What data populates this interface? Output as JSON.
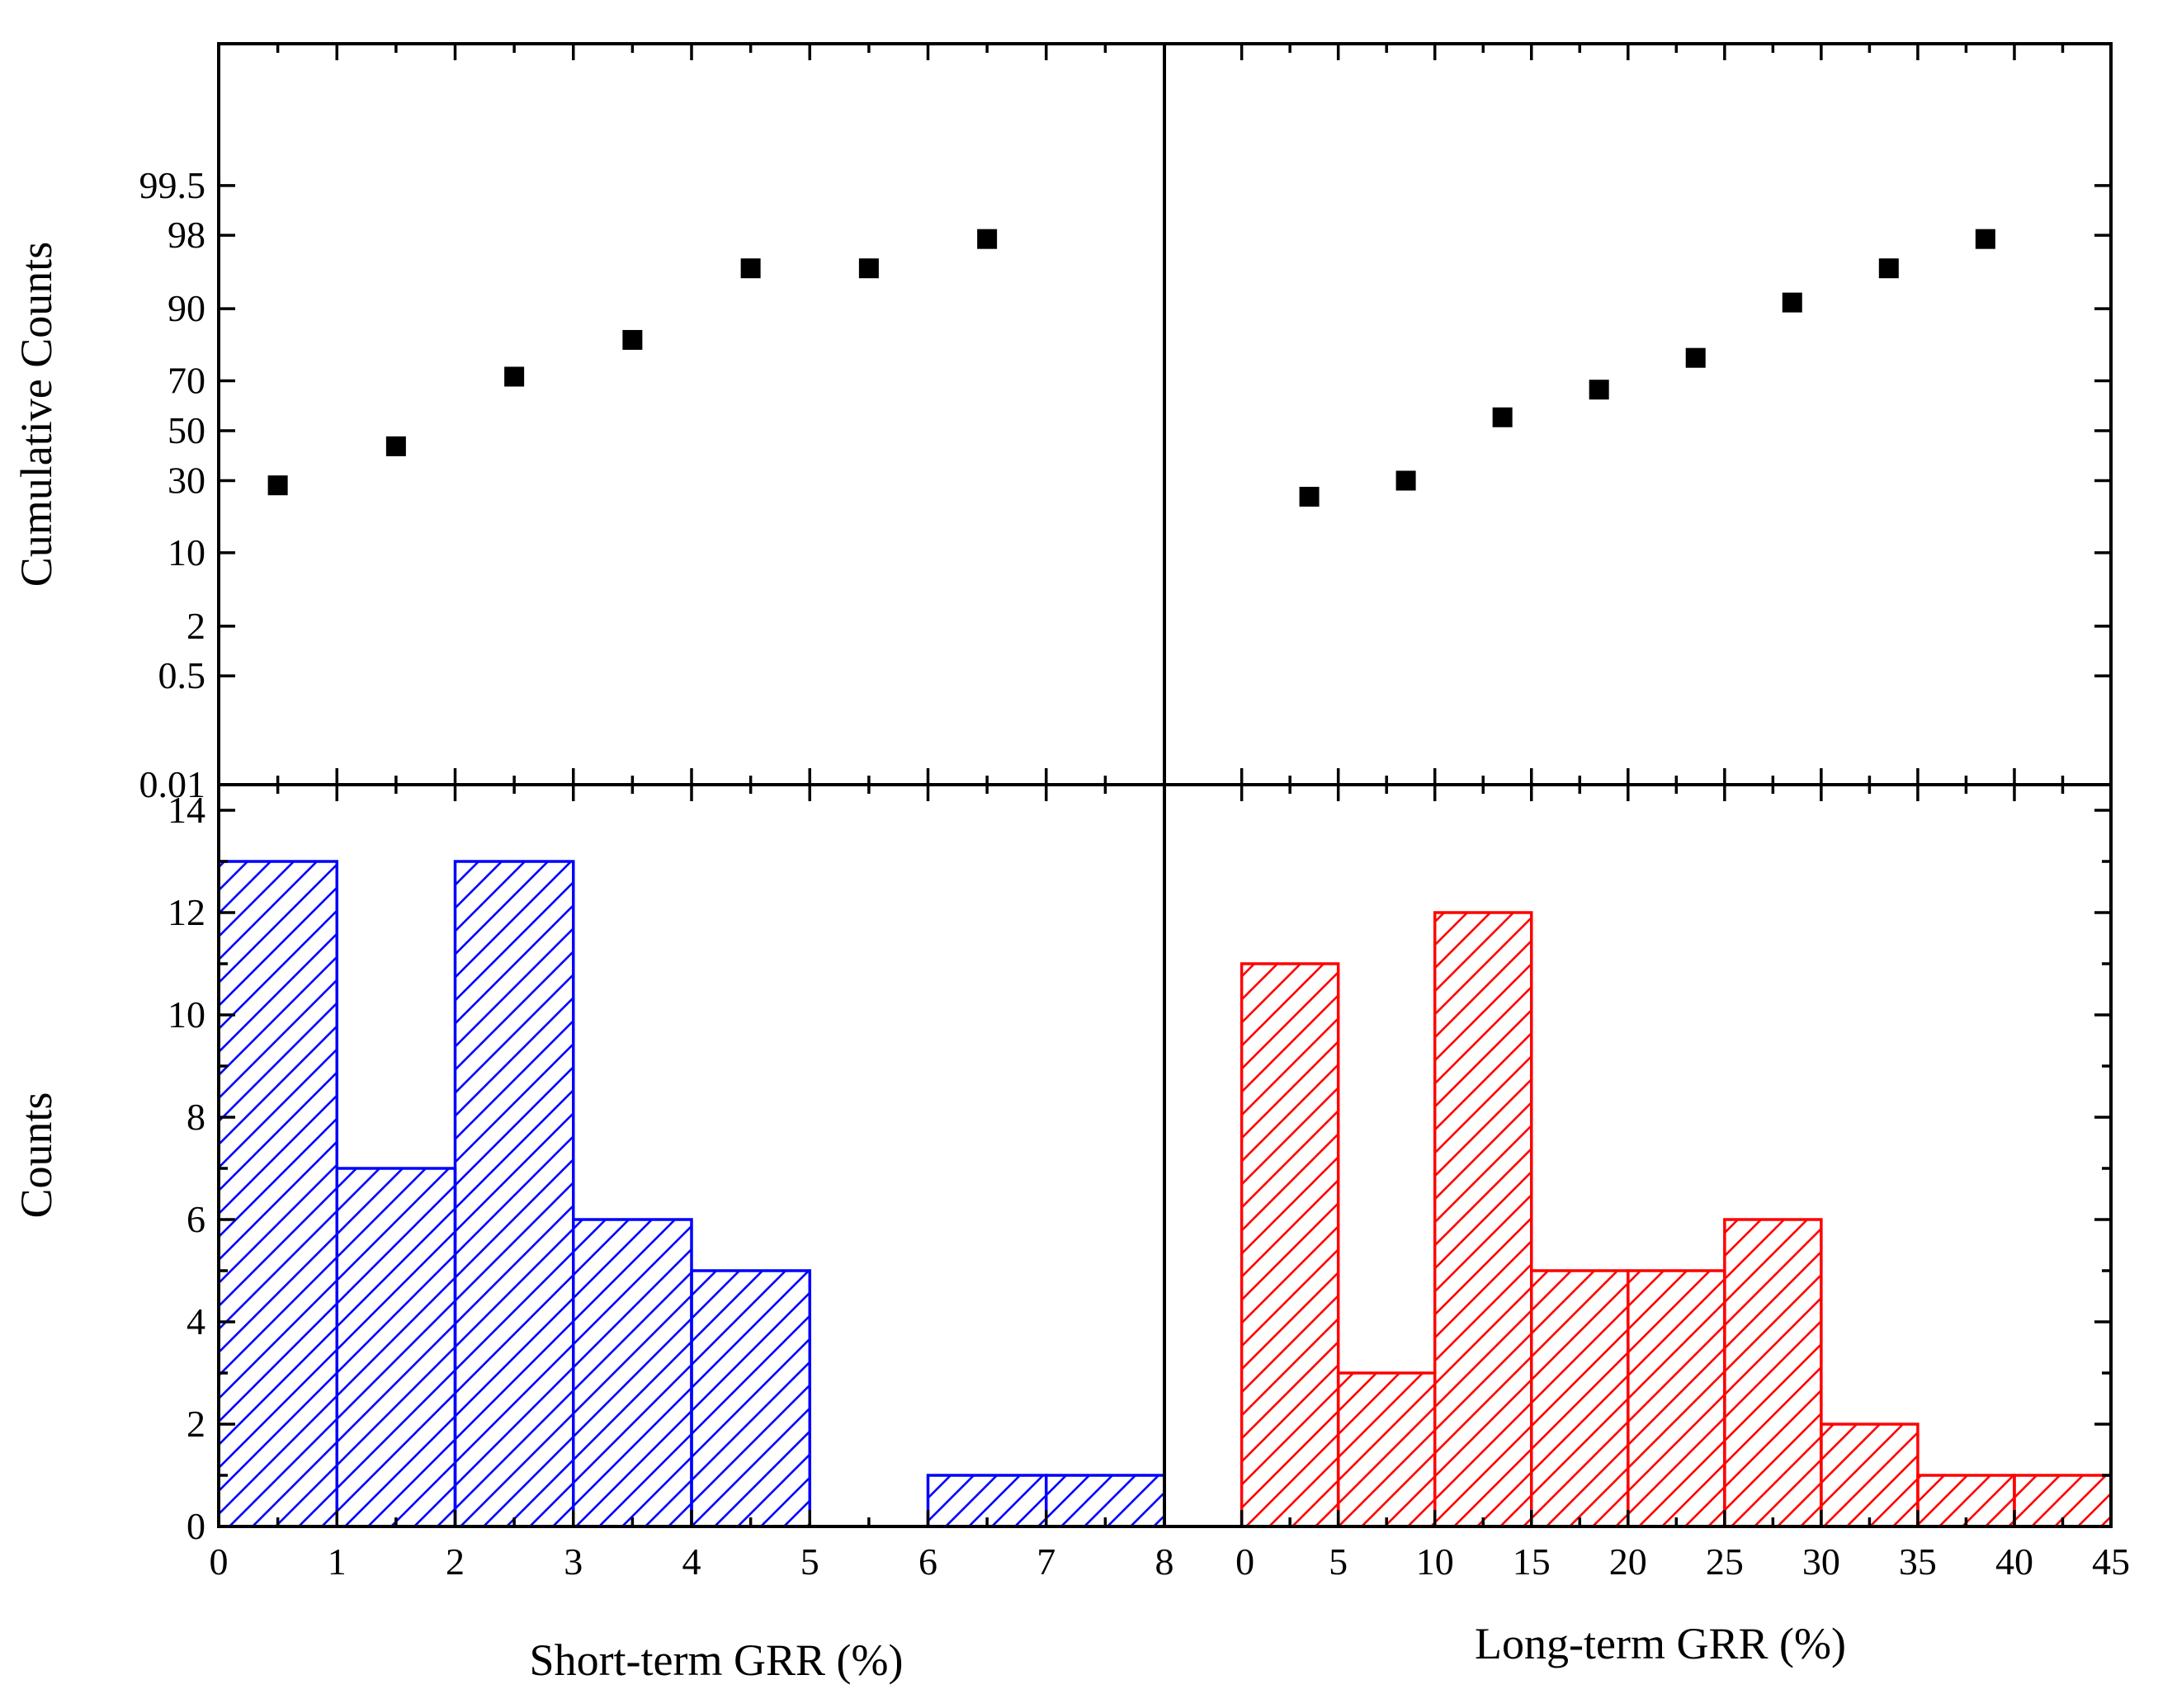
{
  "chart_data": [
    {
      "panel": "top-left",
      "type": "scatter",
      "ylabel": "Cumulative Counts",
      "yscale": "probability",
      "yticks": [
        "0.01",
        "0.5",
        "2",
        "10",
        "30",
        "50",
        "70",
        "90",
        "98",
        "99.5"
      ],
      "xlim": [
        0,
        8
      ],
      "series": [
        {
          "x": [
            0.5,
            1.5,
            2.5,
            3.5,
            4.5,
            5.5,
            6.5
          ],
          "y": [
            28.3,
            43.5,
            71.5,
            83.0,
            95.6,
            95.6,
            97.8
          ]
        }
      ],
      "marker_color": "#000000"
    },
    {
      "panel": "top-right",
      "type": "scatter",
      "yscale": "probability",
      "xlim": [
        -1.5,
        45
      ],
      "series": [
        {
          "x": [
            3.5,
            8.5,
            13.5,
            18.5,
            23.5,
            28.5,
            33.5,
            38.5
          ],
          "y": [
            24.4,
            30.0,
            55.6,
            66.7,
            77.8,
            91.1,
            95.6,
            97.8
          ]
        }
      ],
      "marker_color": "#000000"
    },
    {
      "panel": "bottom-left",
      "type": "bar",
      "ylabel": "Counts",
      "xlabel": "Short-term GRR (%)",
      "ylim": [
        0,
        14.5
      ],
      "yticks": [
        0,
        2,
        4,
        6,
        8,
        10,
        12,
        14
      ],
      "xlim": [
        0,
        8
      ],
      "xticks": [
        0,
        1,
        2,
        3,
        4,
        5,
        6,
        7,
        8
      ],
      "bins": [
        [
          0,
          1
        ],
        [
          1,
          2
        ],
        [
          2,
          3
        ],
        [
          3,
          4
        ],
        [
          4,
          5
        ],
        [
          5,
          6
        ],
        [
          6,
          7
        ],
        [
          7,
          8
        ]
      ],
      "values": [
        13,
        7,
        13,
        6,
        5,
        0,
        1,
        1
      ],
      "fill": "hatched",
      "color": "#0000ff"
    },
    {
      "panel": "bottom-right",
      "type": "bar",
      "xlabel": "Long-term GRR (%)",
      "ylim": [
        0,
        14.5
      ],
      "xlim": [
        -4,
        45
      ],
      "xticks": [
        0,
        5,
        10,
        15,
        20,
        25,
        30,
        35,
        40,
        45
      ],
      "bins": [
        [
          0,
          5
        ],
        [
          5,
          10
        ],
        [
          10,
          15
        ],
        [
          15,
          20
        ],
        [
          20,
          25
        ],
        [
          25,
          30
        ],
        [
          30,
          35
        ],
        [
          35,
          40
        ],
        [
          40,
          45
        ]
      ],
      "values": [
        11,
        3,
        12,
        5,
        5,
        6,
        2,
        1,
        1
      ],
      "fill": "hatched",
      "color": "#ff0000"
    }
  ]
}
